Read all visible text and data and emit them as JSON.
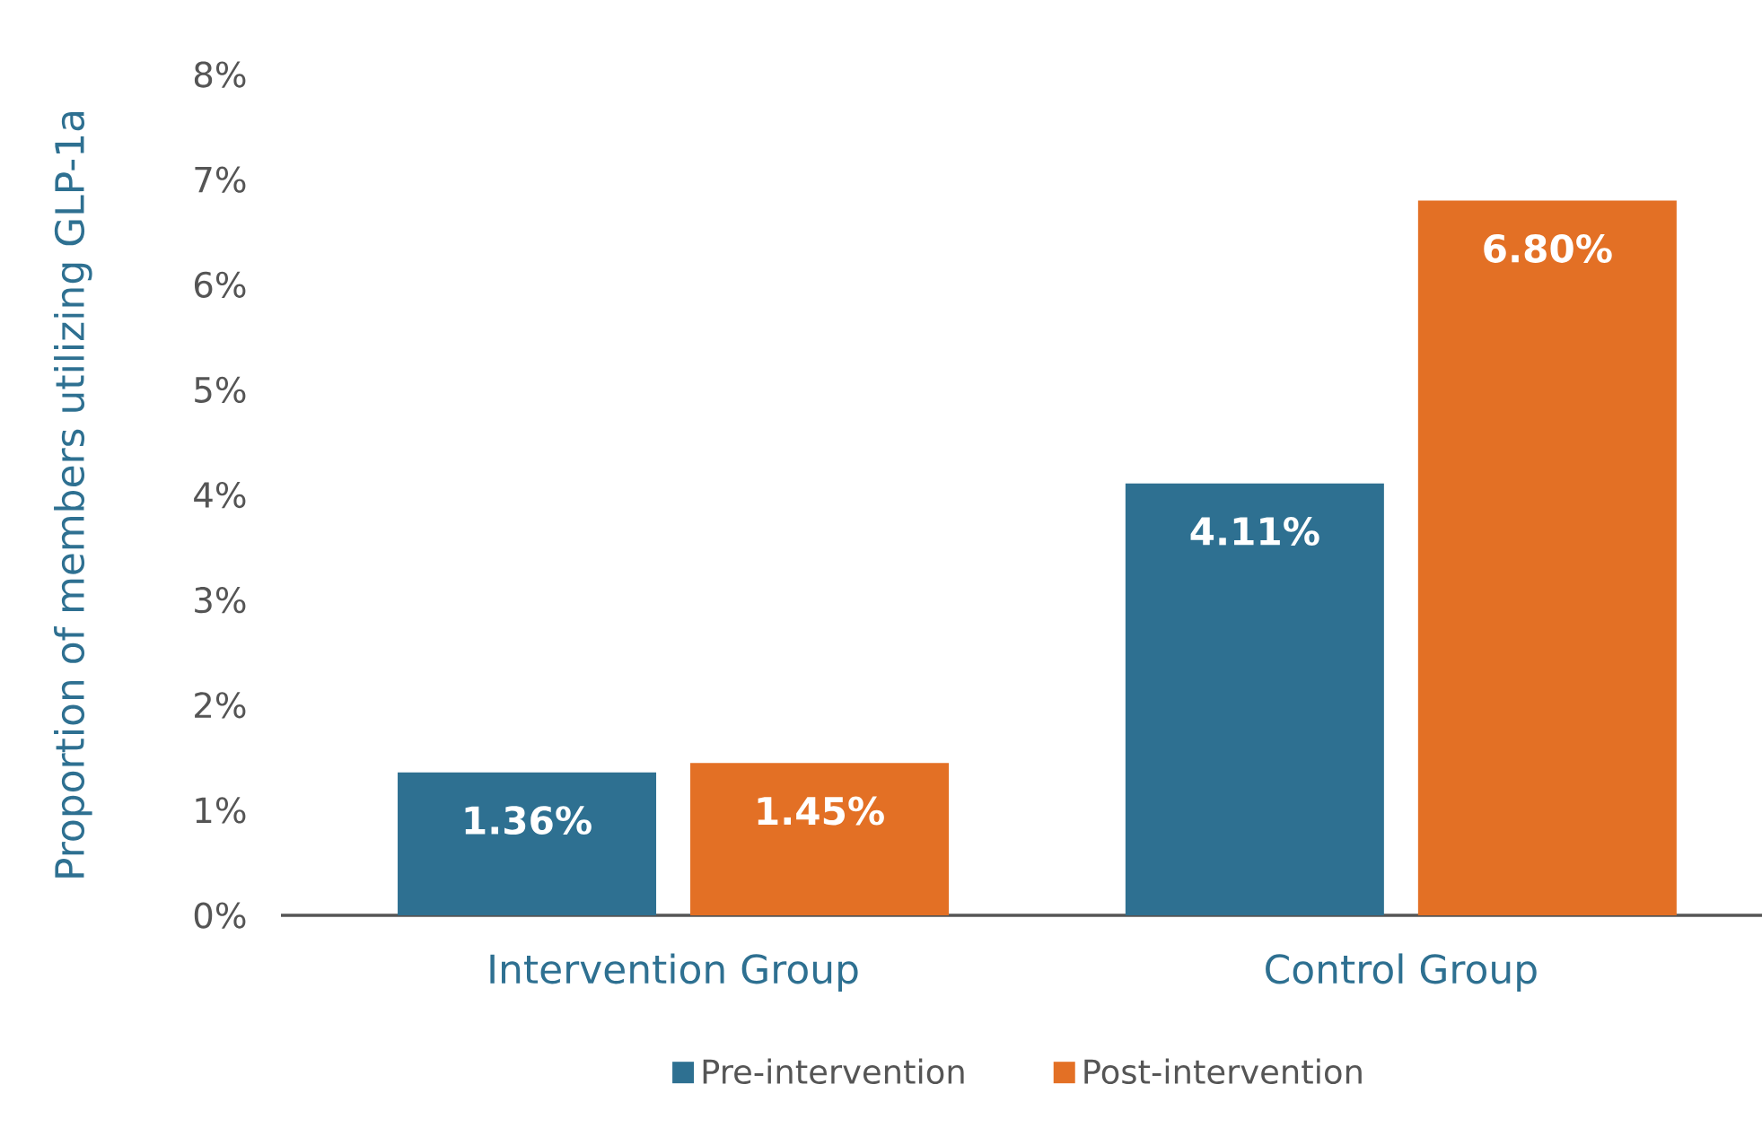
{
  "chart_data": {
    "type": "bar",
    "ylabel": "Proportion of members utilizing GLP-1a",
    "categories": [
      "Intervention Group",
      "Control Group"
    ],
    "series": [
      {
        "name": "Pre-intervention",
        "color": "#2e7091",
        "values": [
          1.36,
          4.11
        ],
        "value_labels": [
          "1.36%",
          "4.11%"
        ]
      },
      {
        "name": "Post-intervention",
        "color": "#e37025",
        "values": [
          1.45,
          6.8
        ],
        "value_labels": [
          "1.45%",
          "6.80%"
        ]
      }
    ],
    "ylim": [
      0,
      8
    ],
    "yticks": [
      {
        "value": 0,
        "label": "0%"
      },
      {
        "value": 1,
        "label": "1%"
      },
      {
        "value": 2,
        "label": "2%"
      },
      {
        "value": 3,
        "label": "3%"
      },
      {
        "value": 4,
        "label": "4%"
      },
      {
        "value": 5,
        "label": "5%"
      },
      {
        "value": 6,
        "label": "6%"
      },
      {
        "value": 7,
        "label": "7%"
      },
      {
        "value": 8,
        "label": "8%"
      }
    ],
    "grid": false,
    "legend": "bottom"
  }
}
